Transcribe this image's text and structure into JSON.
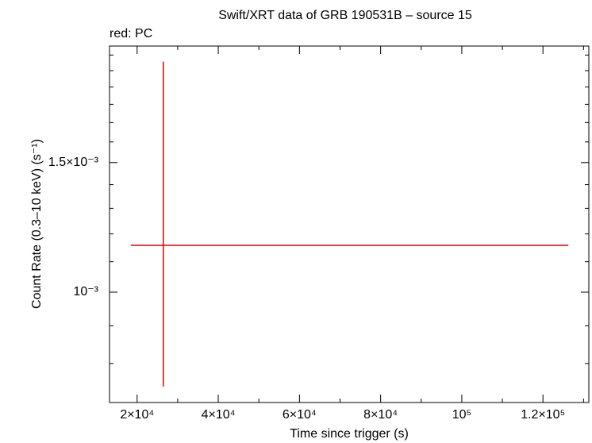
{
  "chart_data": {
    "type": "errorbar",
    "title": "Swift/XRT data of GRB 190531B – source 15",
    "xlabel": "Time since trigger (s)",
    "ylabel": "Count Rate (0.3–10 keV) (s⁻¹)",
    "series": [
      {
        "name": "red: PC",
        "color": "#e00000",
        "x": [
          26450
        ],
        "x_low": [
          18440
        ],
        "x_high": [
          126260
        ],
        "values": [
          0.001158
        ],
        "y_low": [
          0.000744
        ],
        "y_high": [
          0.002057
        ]
      }
    ],
    "xlim": [
      13200,
      131300
    ],
    "xticks": [
      {
        "value": 20000,
        "label": "2×10⁴"
      },
      {
        "value": 40000,
        "label": "4×10⁴"
      },
      {
        "value": 60000,
        "label": "6×10⁴"
      },
      {
        "value": 80000,
        "label": "8×10⁴"
      },
      {
        "value": 100000,
        "label": "10⁵"
      },
      {
        "value": 120000,
        "label": "1.2×10⁵"
      }
    ],
    "xminorticks": [
      30000,
      50000,
      70000,
      90000,
      110000,
      130000
    ],
    "ylim": [
      0.000708,
      0.00216
    ],
    "ylog": true,
    "yticks": [
      {
        "value": 0.001,
        "label": "10⁻³"
      },
      {
        "value": 0.0015,
        "label": "1.5×10⁻³"
      }
    ],
    "yminorticks": [
      0.0008,
      0.0009,
      0.0011,
      0.0012,
      0.0013,
      0.0014,
      0.0016,
      0.0017,
      0.0018,
      0.0019,
      0.002,
      0.0021
    ]
  }
}
